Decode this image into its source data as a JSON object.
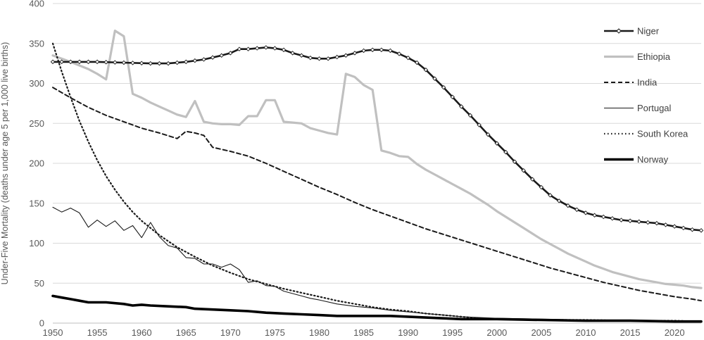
{
  "chart_data": {
    "type": "line",
    "title": "",
    "xlabel": "",
    "ylabel": "Under-Five Mortality (deaths under age 5 per 1,000 live births)",
    "xlim": [
      1950,
      2023
    ],
    "ylim": [
      0,
      400
    ],
    "x_ticks": [
      "1950",
      "1955",
      "1960",
      "1965",
      "1970",
      "1975",
      "1980",
      "1985",
      "1990",
      "1995",
      "2000",
      "2005",
      "2010",
      "2015",
      "2020"
    ],
    "y_ticks": [
      "0",
      "50",
      "100",
      "150",
      "200",
      "250",
      "300",
      "350",
      "400"
    ],
    "grid": "horizontal",
    "legend_position": "right",
    "series": [
      {
        "name": "Niger",
        "style": "thick line with open diamond markers",
        "points": [
          [
            1950,
            327
          ],
          [
            1952,
            327
          ],
          [
            1955,
            327
          ],
          [
            1958,
            326
          ],
          [
            1961,
            325
          ],
          [
            1963,
            325
          ],
          [
            1965,
            327
          ],
          [
            1967,
            330
          ],
          [
            1969,
            335
          ],
          [
            1970,
            338
          ],
          [
            1971,
            343
          ],
          [
            1972,
            343
          ],
          [
            1973,
            344
          ],
          [
            1974,
            345
          ],
          [
            1975,
            344
          ],
          [
            1976,
            342
          ],
          [
            1977,
            338
          ],
          [
            1978,
            335
          ],
          [
            1979,
            332
          ],
          [
            1980,
            331
          ],
          [
            1981,
            331
          ],
          [
            1982,
            333
          ],
          [
            1983,
            335
          ],
          [
            1984,
            338
          ],
          [
            1985,
            341
          ],
          [
            1986,
            342
          ],
          [
            1987,
            342
          ],
          [
            1988,
            341
          ],
          [
            1989,
            337
          ],
          [
            1990,
            332
          ],
          [
            1991,
            326
          ],
          [
            1992,
            317
          ],
          [
            1993,
            306
          ],
          [
            1994,
            295
          ],
          [
            1995,
            283
          ],
          [
            1996,
            271
          ],
          [
            1997,
            260
          ],
          [
            1998,
            248
          ],
          [
            1999,
            236
          ],
          [
            2000,
            225
          ],
          [
            2001,
            214
          ],
          [
            2002,
            202
          ],
          [
            2003,
            191
          ],
          [
            2004,
            180
          ],
          [
            2005,
            170
          ],
          [
            2006,
            160
          ],
          [
            2007,
            153
          ],
          [
            2008,
            147
          ],
          [
            2009,
            142
          ],
          [
            2010,
            138
          ],
          [
            2011,
            135
          ],
          [
            2012,
            133
          ],
          [
            2013,
            131
          ],
          [
            2014,
            129
          ],
          [
            2015,
            128
          ],
          [
            2016,
            127
          ],
          [
            2017,
            126
          ],
          [
            2018,
            125
          ],
          [
            2019,
            123
          ],
          [
            2020,
            121
          ],
          [
            2021,
            119
          ],
          [
            2022,
            117
          ],
          [
            2023,
            116
          ]
        ]
      },
      {
        "name": "Ethiopia",
        "style": "thick light gray line",
        "points": [
          [
            1950,
            335
          ],
          [
            1952,
            327
          ],
          [
            1954,
            318
          ],
          [
            1955,
            312
          ],
          [
            1956,
            305
          ],
          [
            1957,
            366
          ],
          [
            1958,
            359
          ],
          [
            1959,
            287
          ],
          [
            1960,
            282
          ],
          [
            1961,
            276
          ],
          [
            1962,
            271
          ],
          [
            1963,
            266
          ],
          [
            1964,
            261
          ],
          [
            1965,
            258
          ],
          [
            1966,
            278
          ],
          [
            1967,
            252
          ],
          [
            1968,
            250
          ],
          [
            1969,
            249
          ],
          [
            1970,
            249
          ],
          [
            1971,
            248
          ],
          [
            1972,
            259
          ],
          [
            1973,
            259
          ],
          [
            1974,
            279
          ],
          [
            1975,
            279
          ],
          [
            1976,
            252
          ],
          [
            1977,
            251
          ],
          [
            1978,
            250
          ],
          [
            1979,
            244
          ],
          [
            1980,
            241
          ],
          [
            1981,
            238
          ],
          [
            1982,
            236
          ],
          [
            1983,
            312
          ],
          [
            1984,
            308
          ],
          [
            1985,
            298
          ],
          [
            1986,
            292
          ],
          [
            1987,
            216
          ],
          [
            1988,
            213
          ],
          [
            1989,
            209
          ],
          [
            1990,
            208
          ],
          [
            1991,
            199
          ],
          [
            1992,
            192
          ],
          [
            1993,
            186
          ],
          [
            1994,
            180
          ],
          [
            1995,
            174
          ],
          [
            1996,
            168
          ],
          [
            1997,
            162
          ],
          [
            1998,
            155
          ],
          [
            1999,
            148
          ],
          [
            2000,
            140
          ],
          [
            2001,
            133
          ],
          [
            2002,
            126
          ],
          [
            2003,
            119
          ],
          [
            2004,
            112
          ],
          [
            2005,
            105
          ],
          [
            2006,
            99
          ],
          [
            2007,
            93
          ],
          [
            2008,
            87
          ],
          [
            2009,
            82
          ],
          [
            2010,
            77
          ],
          [
            2011,
            72
          ],
          [
            2012,
            68
          ],
          [
            2013,
            64
          ],
          [
            2014,
            61
          ],
          [
            2015,
            58
          ],
          [
            2016,
            55
          ],
          [
            2017,
            53
          ],
          [
            2018,
            51
          ],
          [
            2019,
            49
          ],
          [
            2020,
            48
          ],
          [
            2021,
            47
          ],
          [
            2022,
            45
          ],
          [
            2023,
            44
          ]
        ]
      },
      {
        "name": "India",
        "style": "dashed line",
        "points": [
          [
            1950,
            295
          ],
          [
            1952,
            282
          ],
          [
            1954,
            270
          ],
          [
            1956,
            260
          ],
          [
            1958,
            252
          ],
          [
            1960,
            244
          ],
          [
            1962,
            238
          ],
          [
            1964,
            231
          ],
          [
            1965,
            240
          ],
          [
            1966,
            238
          ],
          [
            1967,
            235
          ],
          [
            1968,
            220
          ],
          [
            1970,
            215
          ],
          [
            1972,
            209
          ],
          [
            1974,
            200
          ],
          [
            1976,
            190
          ],
          [
            1978,
            180
          ],
          [
            1980,
            170
          ],
          [
            1982,
            161
          ],
          [
            1984,
            151
          ],
          [
            1986,
            142
          ],
          [
            1988,
            134
          ],
          [
            1990,
            126
          ],
          [
            1992,
            118
          ],
          [
            1994,
            111
          ],
          [
            1996,
            104
          ],
          [
            1998,
            97
          ],
          [
            2000,
            90
          ],
          [
            2002,
            83
          ],
          [
            2004,
            76
          ],
          [
            2006,
            69
          ],
          [
            2008,
            63
          ],
          [
            2010,
            57
          ],
          [
            2012,
            51
          ],
          [
            2014,
            46
          ],
          [
            2016,
            41
          ],
          [
            2018,
            37
          ],
          [
            2020,
            33
          ],
          [
            2022,
            30
          ],
          [
            2023,
            28
          ]
        ]
      },
      {
        "name": "Portugal",
        "style": "thin solid line",
        "points": [
          [
            1950,
            145
          ],
          [
            1951,
            139
          ],
          [
            1952,
            144
          ],
          [
            1953,
            138
          ],
          [
            1954,
            120
          ],
          [
            1955,
            129
          ],
          [
            1956,
            121
          ],
          [
            1957,
            128
          ],
          [
            1958,
            116
          ],
          [
            1959,
            122
          ],
          [
            1960,
            107
          ],
          [
            1961,
            126
          ],
          [
            1962,
            108
          ],
          [
            1963,
            97
          ],
          [
            1964,
            94
          ],
          [
            1965,
            82
          ],
          [
            1966,
            81
          ],
          [
            1967,
            74
          ],
          [
            1968,
            74
          ],
          [
            1969,
            70
          ],
          [
            1970,
            74
          ],
          [
            1971,
            67
          ],
          [
            1972,
            51
          ],
          [
            1973,
            53
          ],
          [
            1974,
            47
          ],
          [
            1975,
            46
          ],
          [
            1976,
            40
          ],
          [
            1977,
            37
          ],
          [
            1978,
            34
          ],
          [
            1979,
            31
          ],
          [
            1980,
            29
          ],
          [
            1982,
            24
          ],
          [
            1984,
            21
          ],
          [
            1986,
            19
          ],
          [
            1988,
            16
          ],
          [
            1990,
            14
          ],
          [
            1992,
            12
          ],
          [
            1994,
            10
          ],
          [
            1996,
            8
          ],
          [
            1998,
            7
          ],
          [
            2000,
            6
          ],
          [
            2005,
            5
          ],
          [
            2010,
            4
          ],
          [
            2015,
            3
          ],
          [
            2020,
            3
          ],
          [
            2023,
            3
          ]
        ]
      },
      {
        "name": "South Korea",
        "style": "dotted line",
        "points": [
          [
            1950,
            350
          ],
          [
            1951,
            315
          ],
          [
            1952,
            283
          ],
          [
            1953,
            253
          ],
          [
            1954,
            227
          ],
          [
            1955,
            204
          ],
          [
            1956,
            184
          ],
          [
            1957,
            167
          ],
          [
            1958,
            152
          ],
          [
            1959,
            139
          ],
          [
            1960,
            128
          ],
          [
            1962,
            110
          ],
          [
            1964,
            95
          ],
          [
            1966,
            83
          ],
          [
            1968,
            72
          ],
          [
            1970,
            63
          ],
          [
            1972,
            55
          ],
          [
            1974,
            49
          ],
          [
            1976,
            43
          ],
          [
            1978,
            38
          ],
          [
            1980,
            33
          ],
          [
            1982,
            28
          ],
          [
            1984,
            24
          ],
          [
            1986,
            20
          ],
          [
            1988,
            17
          ],
          [
            1990,
            15
          ],
          [
            1992,
            12
          ],
          [
            1994,
            10
          ],
          [
            1996,
            8
          ],
          [
            1998,
            6
          ],
          [
            2000,
            5
          ],
          [
            2005,
            4
          ],
          [
            2010,
            4
          ],
          [
            2015,
            3
          ],
          [
            2020,
            3
          ],
          [
            2023,
            2
          ]
        ]
      },
      {
        "name": "Norway",
        "style": "very thick solid line",
        "points": [
          [
            1950,
            34
          ],
          [
            1951,
            32
          ],
          [
            1952,
            30
          ],
          [
            1953,
            28
          ],
          [
            1954,
            26
          ],
          [
            1956,
            26
          ],
          [
            1958,
            24
          ],
          [
            1959,
            22
          ],
          [
            1960,
            23
          ],
          [
            1961,
            22
          ],
          [
            1963,
            21
          ],
          [
            1965,
            20
          ],
          [
            1966,
            18
          ],
          [
            1968,
            17
          ],
          [
            1970,
            16
          ],
          [
            1972,
            15
          ],
          [
            1974,
            13
          ],
          [
            1976,
            12
          ],
          [
            1978,
            11
          ],
          [
            1980,
            10
          ],
          [
            1982,
            9
          ],
          [
            1984,
            9
          ],
          [
            1986,
            9
          ],
          [
            1988,
            9
          ],
          [
            1990,
            8
          ],
          [
            1992,
            7
          ],
          [
            1994,
            6
          ],
          [
            1996,
            5
          ],
          [
            1998,
            5
          ],
          [
            2000,
            5
          ],
          [
            2005,
            4
          ],
          [
            2010,
            3
          ],
          [
            2015,
            3
          ],
          [
            2020,
            2
          ],
          [
            2023,
            2
          ]
        ]
      }
    ]
  }
}
